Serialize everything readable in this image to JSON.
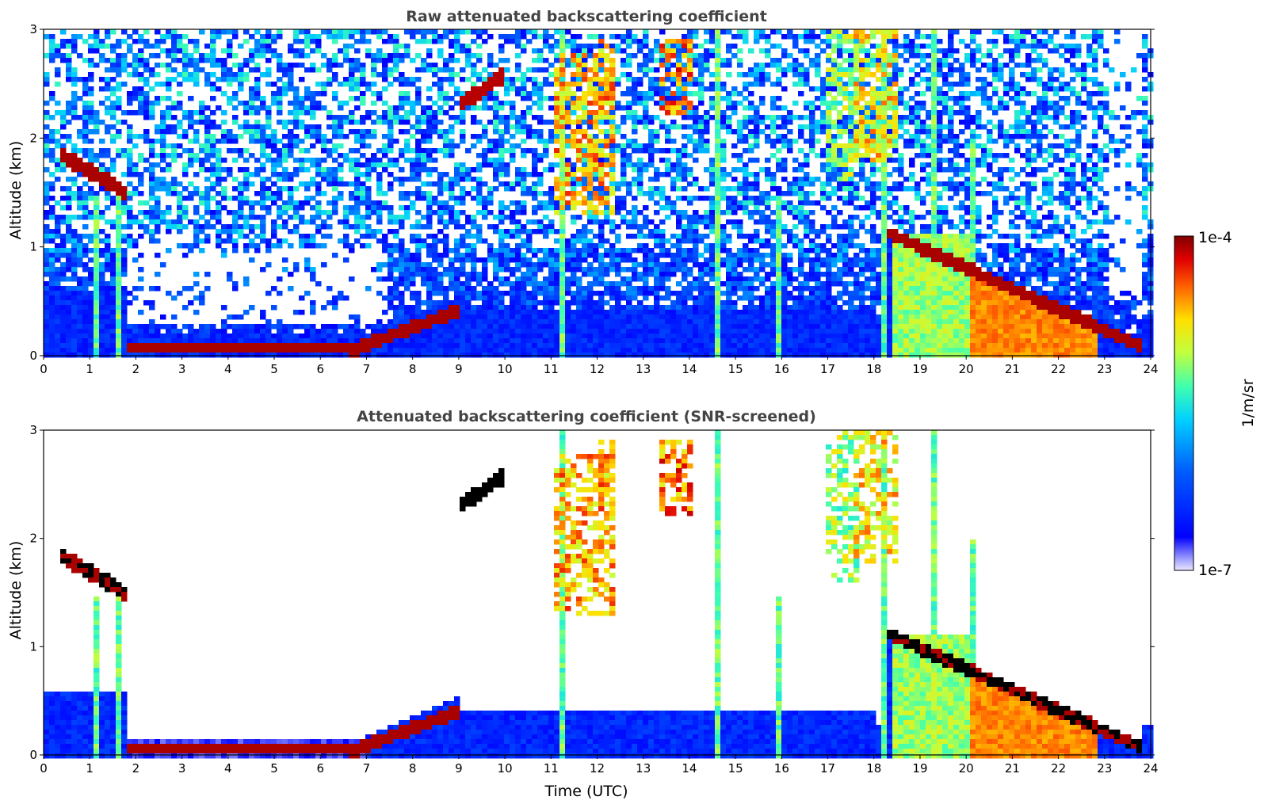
{
  "chart_data": [
    {
      "type": "heatmap",
      "title": "Raw attenuated backscattering coefficient",
      "xlabel": "",
      "ylabel": "Altitude (km)",
      "xlim": [
        0,
        24
      ],
      "ylim": [
        0,
        3
      ],
      "x_ticks": [
        "0",
        "1",
        "2",
        "3",
        "4",
        "5",
        "6",
        "7",
        "8",
        "9",
        "10",
        "11",
        "12",
        "13",
        "14",
        "15",
        "16",
        "17",
        "18",
        "19",
        "20",
        "21",
        "22",
        "23",
        "24"
      ],
      "y_ticks": [
        "0",
        "1",
        "2",
        "3"
      ],
      "features": [
        {
          "kind": "boundary_layer",
          "description": "strong surface layer",
          "x_range": [
            1.8,
            7.0
          ],
          "y_range": [
            0.05,
            0.12
          ],
          "level": "high"
        },
        {
          "kind": "rising_layer",
          "x_range": [
            6.8,
            9.0
          ],
          "y_range": [
            0.05,
            0.45
          ],
          "level": "high"
        },
        {
          "kind": "cloud",
          "x_range": [
            0.4,
            1.8
          ],
          "y_range": [
            1.2,
            1.85
          ],
          "level": "high"
        },
        {
          "kind": "cloud",
          "x_range": [
            9.0,
            10.0
          ],
          "y_range": [
            2.2,
            2.6
          ],
          "level": "high"
        },
        {
          "kind": "cloud",
          "x_range": [
            11.0,
            12.3
          ],
          "y_range": [
            1.4,
            2.8
          ],
          "level": "high"
        },
        {
          "kind": "cloud",
          "x_range": [
            13.3,
            14.0
          ],
          "y_range": [
            2.2,
            2.8
          ],
          "level": "high"
        },
        {
          "kind": "cloud",
          "x_range": [
            16.8,
            18.6
          ],
          "y_range": [
            1.6,
            3.0
          ],
          "level": "high"
        },
        {
          "kind": "descending_layer",
          "x_range": [
            18.3,
            23.8
          ],
          "y_range": [
            0.05,
            1.2
          ],
          "level": "high"
        },
        {
          "kind": "precipitation",
          "x_range": [
            20.0,
            22.5
          ],
          "y_range": [
            0.0,
            0.6
          ],
          "level": "medium-high"
        }
      ]
    },
    {
      "type": "heatmap",
      "title": "Attenuated backscattering coefficient (SNR-screened)",
      "xlabel": "Time (UTC)",
      "ylabel": "Altitude (km)",
      "xlim": [
        0,
        24
      ],
      "ylim": [
        0,
        3
      ],
      "x_ticks": [
        "0",
        "1",
        "2",
        "3",
        "4",
        "5",
        "6",
        "7",
        "8",
        "9",
        "10",
        "11",
        "12",
        "13",
        "14",
        "15",
        "16",
        "17",
        "18",
        "19",
        "20",
        "21",
        "22",
        "23",
        "24"
      ],
      "y_ticks": [
        "0",
        "1",
        "2",
        "3"
      ],
      "screened_color": "#000000"
    }
  ],
  "colorbar": {
    "label": "1/m/sr",
    "max_label": "1e-4",
    "min_label": "1e-7",
    "scale": "log",
    "range": [
      1e-07,
      0.0001
    ],
    "colormap": "jet"
  }
}
